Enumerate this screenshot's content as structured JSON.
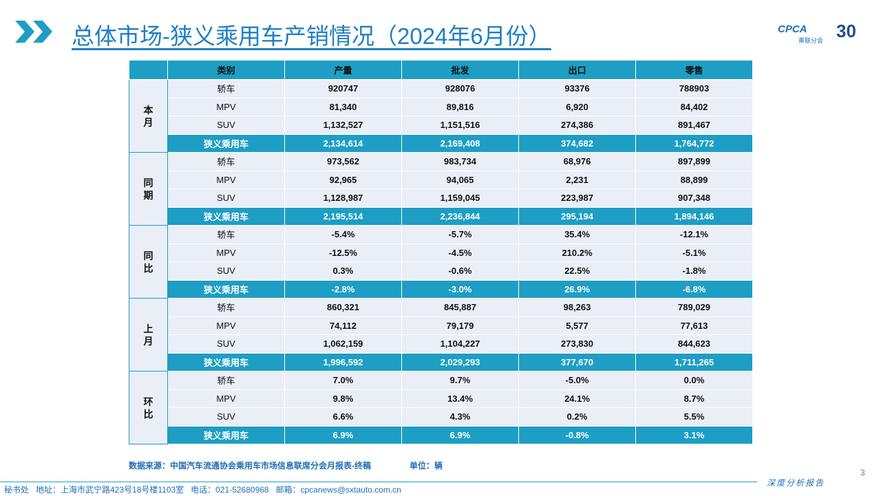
{
  "header": {
    "title": "总体市场-狭义乘用车产销情况（2024年6月份）",
    "logo": {
      "text": "CPCA",
      "name": "乘联分会",
      "anniversary": "30"
    }
  },
  "table": {
    "columns": [
      "类别",
      "产量",
      "批发",
      "出口",
      "零售"
    ],
    "groups": [
      {
        "label": "本月",
        "rows": [
          [
            "轿车",
            "920747",
            "928076",
            "93376",
            "788903"
          ],
          [
            "MPV",
            "81,340",
            "89,816",
            "6,920",
            "84,402"
          ],
          [
            "SUV",
            "1,132,527",
            "1,151,516",
            "274,386",
            "891,467"
          ],
          [
            "狭义乘用车",
            "2,134,614",
            "2,169,408",
            "374,682",
            "1,764,772"
          ]
        ]
      },
      {
        "label": "同期",
        "rows": [
          [
            "轿车",
            "973,562",
            "983,734",
            "68,976",
            "897,899"
          ],
          [
            "MPV",
            "92,965",
            "94,065",
            "2,231",
            "88,899"
          ],
          [
            "SUV",
            "1,128,987",
            "1,159,045",
            "223,987",
            "907,348"
          ],
          [
            "狭义乘用车",
            "2,195,514",
            "2,236,844",
            "295,194",
            "1,894,146"
          ]
        ]
      },
      {
        "label": "同比",
        "rows": [
          [
            "轿车",
            "-5.4%",
            "-5.7%",
            "35.4%",
            "-12.1%"
          ],
          [
            "MPV",
            "-12.5%",
            "-4.5%",
            "210.2%",
            "-5.1%"
          ],
          [
            "SUV",
            "0.3%",
            "-0.6%",
            "22.5%",
            "-1.8%"
          ],
          [
            "狭义乘用车",
            "-2.8%",
            "-3.0%",
            "26.9%",
            "-6.8%"
          ]
        ]
      },
      {
        "label": "上月",
        "rows": [
          [
            "轿车",
            "860,321",
            "845,887",
            "98,263",
            "789,029"
          ],
          [
            "MPV",
            "74,112",
            "79,179",
            "5,577",
            "77,613"
          ],
          [
            "SUV",
            "1,062,159",
            "1,104,227",
            "273,830",
            "844,623"
          ],
          [
            "狭义乘用车",
            "1,996,592",
            "2,029,293",
            "377,670",
            "1,711,265"
          ]
        ]
      },
      {
        "label": "环比",
        "rows": [
          [
            "轿车",
            "7.0%",
            "9.7%",
            "-5.0%",
            "0.0%"
          ],
          [
            "MPV",
            "9.8%",
            "13.4%",
            "24.1%",
            "8.7%"
          ],
          [
            "SUV",
            "6.6%",
            "4.3%",
            "0.2%",
            "5.5%"
          ],
          [
            "狭义乘用车",
            "6.9%",
            "6.9%",
            "-0.8%",
            "3.1%"
          ]
        ]
      }
    ]
  },
  "footer": {
    "source": "数据来源：中国汽车流通协会乘用车市场信息联席分会月报表-终稿",
    "unit": "单位：辆",
    "page": "3",
    "contact": "秘书处   地址：上海市武宁路423号18号楼1103室   电话：021-52680968   邮箱：cpcanews@sxtauto.com.cn",
    "tagline": "深度分析报告"
  }
}
